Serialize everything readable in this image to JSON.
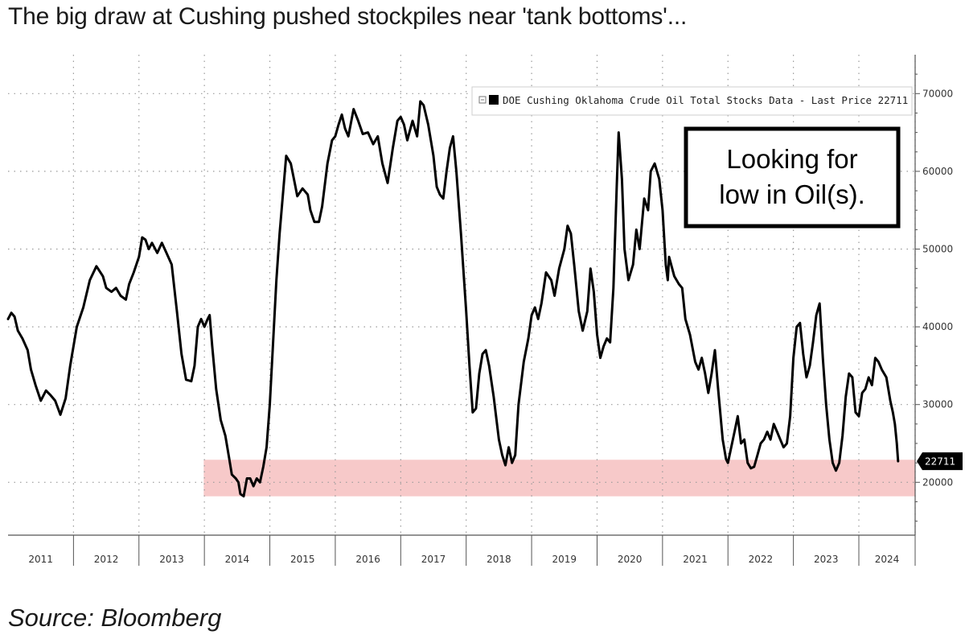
{
  "headline": "The big draw at Cushing pushed stockpiles near 'tank bottoms'...",
  "source": "Source: Bloomberg",
  "callout": {
    "line1": "Looking for",
    "line2": "low in Oil(s)."
  },
  "colors": {
    "line": "#000000",
    "band": "#f7c9c9",
    "grid": "#9a9a9a",
    "axis": "#555555",
    "label_bg": "#000000",
    "label_text": "#ffffff"
  },
  "chart_data": {
    "type": "line",
    "title": "",
    "xlabel": "",
    "ylabel": "",
    "legend": {
      "text": "DOE Cushing Oklahoma Crude Oil Total Stocks Data - Last Price 22711",
      "placement": "top-right"
    },
    "last_price_label": "22711",
    "x_range": [
      2011.0,
      2024.86
    ],
    "ylim": [
      13200,
      75000
    ],
    "y_ticks": [
      20000,
      30000,
      40000,
      50000,
      60000,
      70000
    ],
    "y_tick_labels": [
      "20000",
      "30000",
      "40000",
      "50000",
      "60000",
      "70000"
    ],
    "x_ticks": [
      "2011",
      "2012",
      "2013",
      "2014",
      "2015",
      "2016",
      "2017",
      "2018",
      "2019",
      "2020",
      "2021",
      "2022",
      "2023",
      "2024"
    ],
    "x_tick_years": [
      2011,
      2012,
      2013,
      2014,
      2015,
      2016,
      2017,
      2018,
      2019,
      2020,
      2021,
      2022,
      2023,
      2024
    ],
    "grid": true,
    "highlight_band": {
      "y_from": 18200,
      "y_to": 22900,
      "x_from": 2013.99,
      "x_to": 2024.86
    },
    "series": [
      {
        "values": [
          [
            2011.0,
            41000
          ],
          [
            2011.05,
            41800
          ],
          [
            2011.1,
            41300
          ],
          [
            2011.15,
            39500
          ],
          [
            2011.22,
            38500
          ],
          [
            2011.3,
            37000
          ],
          [
            2011.35,
            34500
          ],
          [
            2011.42,
            32500
          ],
          [
            2011.5,
            30500
          ],
          [
            2011.58,
            31800
          ],
          [
            2011.65,
            31200
          ],
          [
            2011.72,
            30500
          ],
          [
            2011.8,
            28700
          ],
          [
            2011.88,
            30800
          ],
          [
            2011.95,
            35000
          ],
          [
            2012.05,
            40000
          ],
          [
            2012.15,
            42500
          ],
          [
            2012.25,
            46000
          ],
          [
            2012.35,
            47800
          ],
          [
            2012.45,
            46500
          ],
          [
            2012.5,
            45000
          ],
          [
            2012.58,
            44500
          ],
          [
            2012.65,
            45000
          ],
          [
            2012.72,
            44000
          ],
          [
            2012.8,
            43500
          ],
          [
            2012.85,
            45500
          ],
          [
            2012.92,
            47000
          ],
          [
            2013.0,
            49000
          ],
          [
            2013.05,
            51500
          ],
          [
            2013.1,
            51200
          ],
          [
            2013.15,
            50000
          ],
          [
            2013.2,
            50800
          ],
          [
            2013.28,
            49500
          ],
          [
            2013.35,
            50800
          ],
          [
            2013.42,
            49500
          ],
          [
            2013.5,
            48000
          ],
          [
            2013.58,
            42000
          ],
          [
            2013.65,
            36500
          ],
          [
            2013.72,
            33200
          ],
          [
            2013.8,
            33000
          ],
          [
            2013.85,
            35000
          ],
          [
            2013.9,
            40000
          ],
          [
            2013.95,
            41000
          ],
          [
            2014.0,
            40000
          ],
          [
            2014.05,
            41000
          ],
          [
            2014.08,
            41500
          ],
          [
            2014.12,
            37500
          ],
          [
            2014.18,
            32000
          ],
          [
            2014.25,
            28000
          ],
          [
            2014.32,
            26000
          ],
          [
            2014.38,
            23000
          ],
          [
            2014.42,
            21000
          ],
          [
            2014.48,
            20500
          ],
          [
            2014.52,
            20000
          ],
          [
            2014.55,
            18500
          ],
          [
            2014.6,
            18200
          ],
          [
            2014.65,
            20500
          ],
          [
            2014.7,
            20500
          ],
          [
            2014.75,
            19500
          ],
          [
            2014.8,
            20500
          ],
          [
            2014.85,
            20000
          ],
          [
            2014.9,
            22000
          ],
          [
            2014.95,
            24500
          ],
          [
            2015.0,
            30000
          ],
          [
            2015.05,
            38000
          ],
          [
            2015.1,
            46000
          ],
          [
            2015.15,
            52000
          ],
          [
            2015.2,
            57000
          ],
          [
            2015.25,
            62000
          ],
          [
            2015.32,
            61000
          ],
          [
            2015.38,
            58500
          ],
          [
            2015.42,
            56800
          ],
          [
            2015.5,
            57800
          ],
          [
            2015.58,
            57000
          ],
          [
            2015.62,
            55000
          ],
          [
            2015.68,
            53500
          ],
          [
            2015.75,
            53500
          ],
          [
            2015.8,
            55500
          ],
          [
            2015.88,
            61000
          ],
          [
            2015.95,
            64000
          ],
          [
            2016.0,
            64500
          ],
          [
            2016.05,
            66000
          ],
          [
            2016.1,
            67300
          ],
          [
            2016.15,
            65500
          ],
          [
            2016.2,
            64500
          ],
          [
            2016.28,
            68000
          ],
          [
            2016.35,
            66500
          ],
          [
            2016.42,
            64800
          ],
          [
            2016.5,
            65000
          ],
          [
            2016.58,
            63500
          ],
          [
            2016.65,
            64500
          ],
          [
            2016.72,
            61000
          ],
          [
            2016.8,
            58500
          ],
          [
            2016.88,
            63000
          ],
          [
            2016.95,
            66500
          ],
          [
            2017.0,
            67000
          ],
          [
            2017.05,
            66000
          ],
          [
            2017.1,
            64000
          ],
          [
            2017.18,
            66500
          ],
          [
            2017.25,
            64500
          ],
          [
            2017.3,
            69000
          ],
          [
            2017.35,
            68500
          ],
          [
            2017.42,
            66000
          ],
          [
            2017.5,
            62000
          ],
          [
            2017.55,
            58000
          ],
          [
            2017.6,
            57000
          ],
          [
            2017.65,
            56500
          ],
          [
            2017.7,
            60000
          ],
          [
            2017.75,
            63000
          ],
          [
            2017.8,
            64500
          ],
          [
            2017.85,
            60000
          ],
          [
            2017.92,
            52000
          ],
          [
            2018.0,
            42000
          ],
          [
            2018.05,
            35000
          ],
          [
            2018.1,
            29000
          ],
          [
            2018.15,
            29500
          ],
          [
            2018.2,
            34000
          ],
          [
            2018.25,
            36500
          ],
          [
            2018.3,
            37000
          ],
          [
            2018.35,
            35000
          ],
          [
            2018.42,
            31000
          ],
          [
            2018.5,
            25500
          ],
          [
            2018.55,
            23500
          ],
          [
            2018.6,
            22200
          ],
          [
            2018.65,
            24500
          ],
          [
            2018.7,
            22500
          ],
          [
            2018.75,
            23500
          ],
          [
            2018.8,
            30000
          ],
          [
            2018.88,
            35500
          ],
          [
            2018.95,
            38500
          ],
          [
            2019.0,
            41500
          ],
          [
            2019.05,
            42500
          ],
          [
            2019.1,
            41000
          ],
          [
            2019.15,
            43000
          ],
          [
            2019.22,
            47000
          ],
          [
            2019.3,
            46000
          ],
          [
            2019.35,
            44000
          ],
          [
            2019.42,
            47500
          ],
          [
            2019.5,
            50000
          ],
          [
            2019.55,
            53000
          ],
          [
            2019.6,
            52000
          ],
          [
            2019.65,
            48000
          ],
          [
            2019.72,
            42000
          ],
          [
            2019.78,
            39500
          ],
          [
            2019.85,
            42000
          ],
          [
            2019.9,
            47500
          ],
          [
            2019.95,
            44500
          ],
          [
            2020.0,
            39000
          ],
          [
            2020.05,
            36000
          ],
          [
            2020.1,
            37500
          ],
          [
            2020.15,
            38500
          ],
          [
            2020.2,
            38000
          ],
          [
            2020.25,
            45000
          ],
          [
            2020.3,
            58000
          ],
          [
            2020.33,
            65000
          ],
          [
            2020.38,
            59000
          ],
          [
            2020.42,
            50000
          ],
          [
            2020.48,
            46000
          ],
          [
            2020.55,
            48000
          ],
          [
            2020.6,
            52500
          ],
          [
            2020.65,
            50000
          ],
          [
            2020.72,
            56500
          ],
          [
            2020.78,
            55000
          ],
          [
            2020.82,
            60000
          ],
          [
            2020.88,
            61000
          ],
          [
            2020.95,
            59000
          ],
          [
            2021.0,
            55000
          ],
          [
            2021.05,
            48000
          ],
          [
            2021.08,
            46000
          ],
          [
            2021.1,
            49000
          ],
          [
            2021.18,
            46500
          ],
          [
            2021.25,
            45500
          ],
          [
            2021.3,
            45000
          ],
          [
            2021.35,
            41000
          ],
          [
            2021.42,
            39000
          ],
          [
            2021.5,
            35500
          ],
          [
            2021.55,
            34500
          ],
          [
            2021.6,
            36000
          ],
          [
            2021.65,
            34000
          ],
          [
            2021.7,
            31500
          ],
          [
            2021.75,
            34000
          ],
          [
            2021.8,
            37000
          ],
          [
            2021.85,
            32000
          ],
          [
            2021.92,
            25500
          ],
          [
            2021.97,
            23000
          ],
          [
            2022.0,
            22500
          ],
          [
            2022.05,
            24500
          ],
          [
            2022.1,
            26500
          ],
          [
            2022.15,
            28500
          ],
          [
            2022.2,
            25000
          ],
          [
            2022.25,
            25500
          ],
          [
            2022.3,
            22500
          ],
          [
            2022.35,
            21800
          ],
          [
            2022.4,
            22000
          ],
          [
            2022.45,
            23500
          ],
          [
            2022.5,
            25000
          ],
          [
            2022.55,
            25500
          ],
          [
            2022.6,
            26500
          ],
          [
            2022.65,
            25500
          ],
          [
            2022.7,
            27500
          ],
          [
            2022.75,
            26500
          ],
          [
            2022.8,
            25500
          ],
          [
            2022.85,
            24500
          ],
          [
            2022.9,
            25000
          ],
          [
            2022.95,
            28500
          ],
          [
            2023.0,
            36000
          ],
          [
            2023.05,
            40000
          ],
          [
            2023.1,
            40500
          ],
          [
            2023.15,
            36500
          ],
          [
            2023.2,
            33500
          ],
          [
            2023.25,
            35000
          ],
          [
            2023.3,
            38000
          ],
          [
            2023.35,
            41500
          ],
          [
            2023.4,
            43000
          ],
          [
            2023.45,
            36000
          ],
          [
            2023.5,
            30000
          ],
          [
            2023.55,
            25500
          ],
          [
            2023.6,
            22500
          ],
          [
            2023.65,
            21500
          ],
          [
            2023.7,
            22500
          ],
          [
            2023.75,
            26000
          ],
          [
            2023.8,
            31000
          ],
          [
            2023.85,
            34000
          ],
          [
            2023.9,
            33500
          ],
          [
            2023.95,
            29000
          ],
          [
            2024.0,
            28500
          ],
          [
            2024.05,
            31500
          ],
          [
            2024.1,
            32000
          ],
          [
            2024.15,
            33500
          ],
          [
            2024.2,
            32500
          ],
          [
            2024.25,
            36000
          ],
          [
            2024.3,
            35500
          ],
          [
            2024.35,
            34500
          ],
          [
            2024.42,
            33500
          ],
          [
            2024.48,
            30500
          ],
          [
            2024.52,
            29000
          ],
          [
            2024.55,
            27500
          ],
          [
            2024.58,
            25000
          ],
          [
            2024.6,
            22711
          ]
        ]
      }
    ]
  }
}
